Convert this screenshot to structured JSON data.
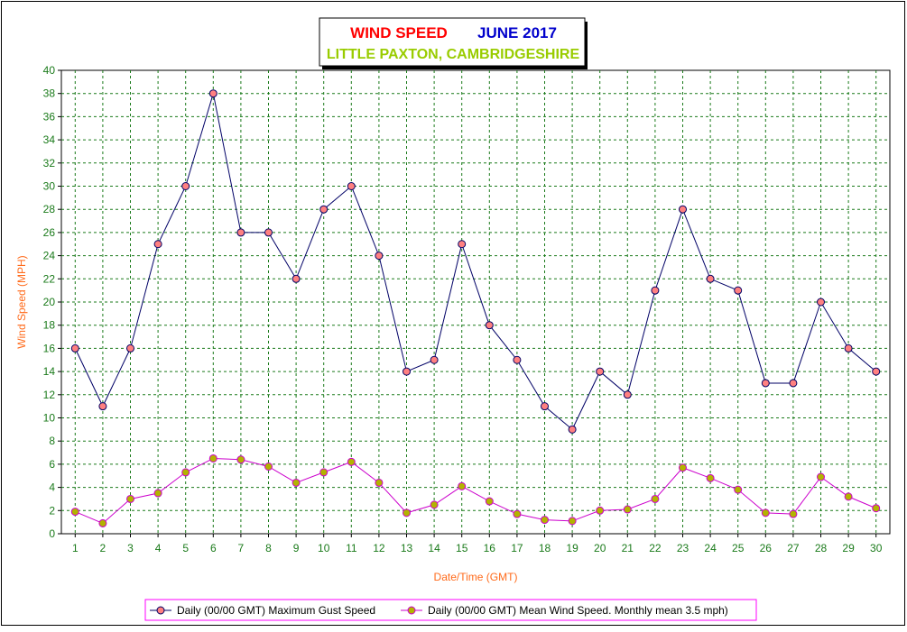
{
  "colors": {
    "title_wind": "#ff0000",
    "title_month": "#0000cc",
    "subtitle": "#99cc00",
    "axis_label": "#ff6a1a",
    "tick_label": "#1a7a1a",
    "grid": "#1a7a1a",
    "gust_line": "#000066",
    "gust_marker": "#ff8080",
    "mean_line": "#cc00cc",
    "mean_marker": "#b3b300",
    "legend_border": "#ff00ff"
  },
  "chart_data": {
    "type": "line",
    "title_part1": "WIND SPEED",
    "title_part2": "JUNE 2017",
    "subtitle": "LITTLE PAXTON, CAMBRIDGESHIRE",
    "xlabel": "Date/Time (GMT)",
    "ylabel": "Wind Speed (MPH)",
    "ylim": [
      0,
      40
    ],
    "ytick_step": 2,
    "grid": true,
    "legend_position": "bottom",
    "x": [
      1,
      2,
      3,
      4,
      5,
      6,
      7,
      8,
      9,
      10,
      11,
      12,
      13,
      14,
      15,
      16,
      17,
      18,
      19,
      20,
      21,
      22,
      23,
      24,
      25,
      26,
      27,
      28,
      29,
      30
    ],
    "series": [
      {
        "name": "Daily (00/00 GMT) Maximum Gust Speed",
        "values": [
          16,
          11,
          16,
          25,
          30,
          38,
          26,
          26,
          22,
          28,
          30,
          24,
          14,
          15,
          25,
          18,
          15,
          11,
          9,
          14,
          12,
          21,
          28,
          22,
          21,
          13,
          13,
          20,
          16,
          14
        ]
      },
      {
        "name": "Daily (00/00 GMT) Mean Wind Speed. Monthly mean 3.5 mph)",
        "values": [
          1.9,
          0.9,
          3.0,
          3.5,
          5.3,
          6.5,
          6.4,
          5.8,
          4.4,
          5.3,
          6.2,
          4.4,
          1.8,
          2.5,
          4.1,
          2.8,
          1.7,
          1.2,
          1.1,
          2.0,
          2.1,
          3.0,
          5.7,
          4.8,
          3.8,
          1.8,
          1.7,
          4.9,
          3.2,
          2.2
        ]
      }
    ]
  }
}
